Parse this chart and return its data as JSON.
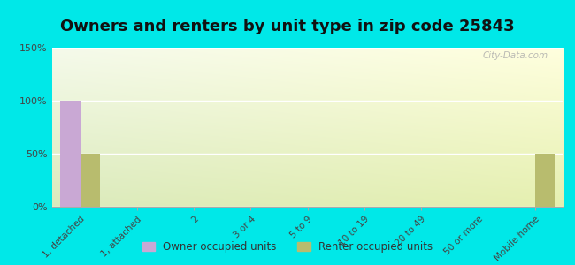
{
  "title": "Owners and renters by unit type in zip code 25843",
  "categories": [
    "1, detached",
    "1, attached",
    "2",
    "3 or 4",
    "5 to 9",
    "10 to 19",
    "20 to 49",
    "50 or more",
    "Mobile home"
  ],
  "owner_values": [
    100,
    0,
    0,
    0,
    0,
    0,
    0,
    0,
    0
  ],
  "renter_values": [
    50,
    0,
    0,
    0,
    0,
    0,
    0,
    0,
    50
  ],
  "owner_color": "#c9a8d4",
  "renter_color": "#b8bc6e",
  "ylim": [
    0,
    150
  ],
  "yticks": [
    0,
    50,
    100,
    150
  ],
  "ytick_labels": [
    "0%",
    "50%",
    "100%",
    "150%"
  ],
  "background_outer": "#00e8e8",
  "title_fontsize": 13,
  "legend_owner": "Owner occupied units",
  "legend_renter": "Renter occupied units",
  "bar_width": 0.35,
  "watermark": "City-Data.com"
}
